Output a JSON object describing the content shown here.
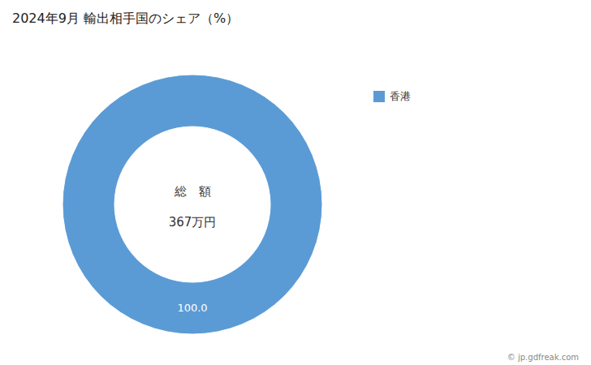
{
  "chart_data": {
    "type": "donut",
    "title": "2024年9月 輸出相手国のシェア（%）",
    "categories": [
      "香港"
    ],
    "values": [
      100.0
    ],
    "colors": [
      "#5b9bd5"
    ],
    "data_labels": true,
    "value_labels": [
      "100.0"
    ],
    "legend": "right",
    "annotations": [
      "総　額",
      "367万円",
      "© jp.gdfreak.com"
    ]
  }
}
